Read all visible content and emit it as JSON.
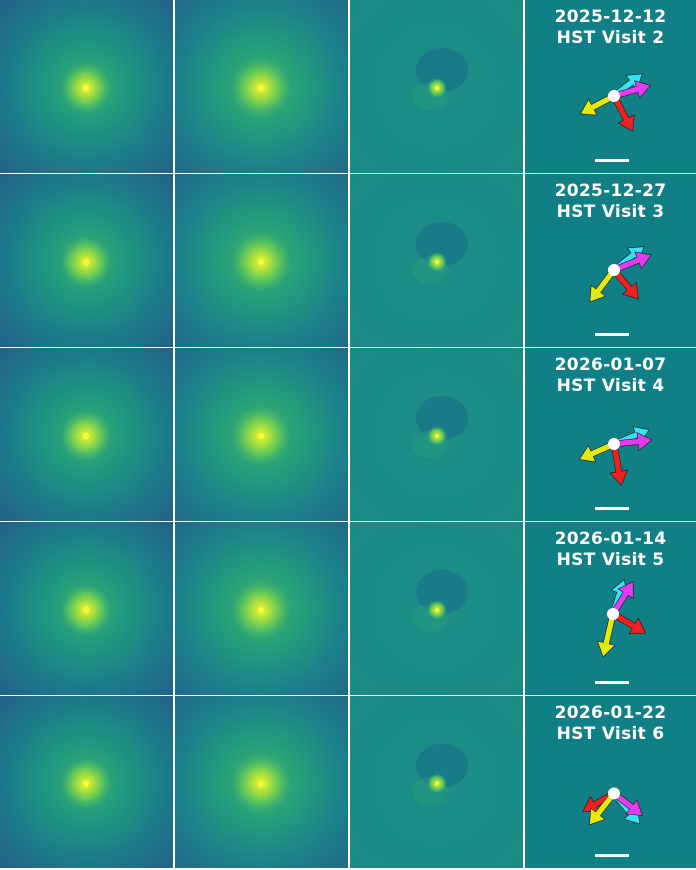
{
  "panels": [
    {
      "date": "2025-12-12",
      "visit": "HST Visit 2"
    },
    {
      "date": "2025-12-27",
      "visit": "HST Visit 3"
    },
    {
      "date": "2026-01-07",
      "visit": "HST Visit 4"
    },
    {
      "date": "2026-01-14",
      "visit": "HST Visit 5"
    },
    {
      "date": "2026-01-22",
      "visit": "HST Visit 6"
    }
  ],
  "image_columns": [
    "raw-image",
    "model-image",
    "residual-image"
  ],
  "colors": {
    "info_background": "#107f86",
    "arrow_cyan": "#35e3f5",
    "arrow_magenta": "#e43bf0",
    "arrow_red": "#ee2020",
    "arrow_yellow": "#e3e812",
    "scale_bar": "#ffffff",
    "nucleus_marker": "#ffffff",
    "grid_lines": "#ffffff"
  },
  "icons": [
    "direction-arrow-cyan-icon",
    "direction-arrow-magenta-icon",
    "direction-arrow-red-icon",
    "direction-arrow-yellow-icon",
    "nucleus-marker-icon",
    "scale-bar-icon"
  ]
}
